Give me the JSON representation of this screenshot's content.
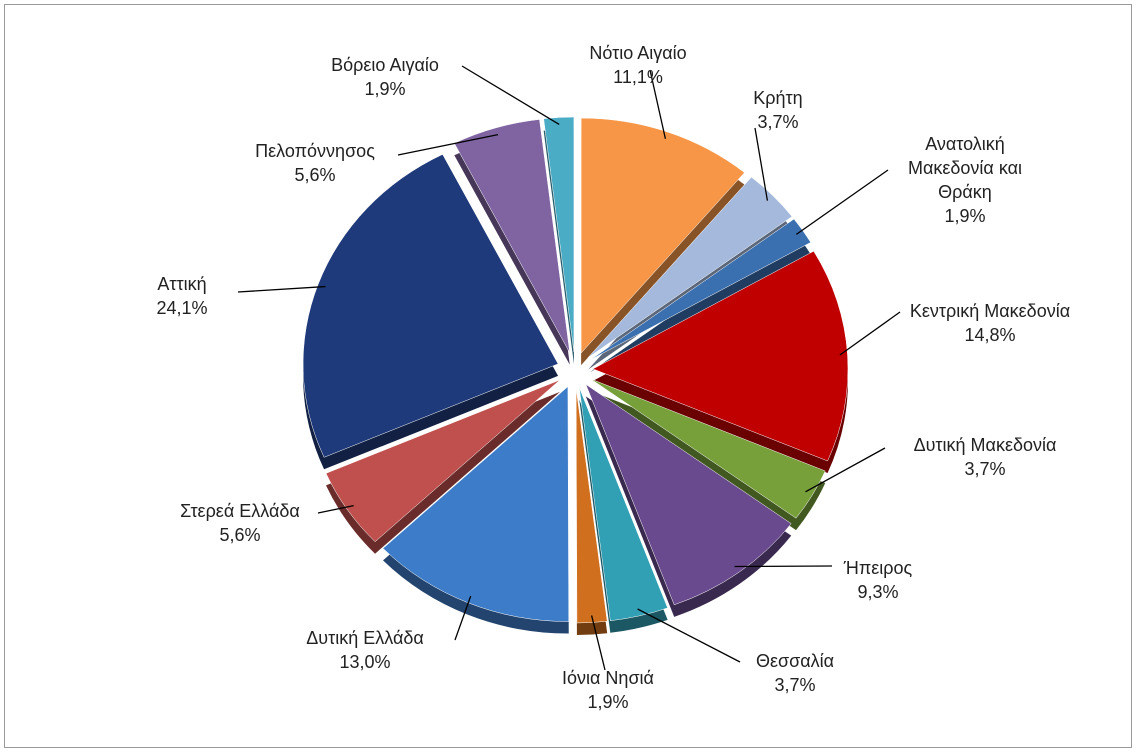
{
  "chart_data": {
    "type": "pie",
    "categories": [
      "Νότιο Αιγαίο",
      "Κρήτη",
      "Ανατολική Μακεδονία και Θράκη",
      "Κεντρική Μακεδονία",
      "Δυτική Μακεδονία",
      "Ήπειρος",
      "Θεσσαλία",
      "Ιόνια Νησιά",
      "Δυτική Ελλάδα",
      "Στερεά Ελλάδα",
      "Αττική",
      "Πελοπόννησος",
      "Βόρειο Αιγαίο"
    ],
    "values": [
      11.1,
      3.7,
      1.9,
      14.8,
      3.7,
      9.3,
      3.7,
      1.9,
      13.0,
      5.6,
      24.1,
      5.6,
      1.9
    ],
    "value_labels": [
      "11,1%",
      "3,7%",
      "1,9%",
      "14,8%",
      "3,7%",
      "9,3%",
      "3,7%",
      "1,9%",
      "13,0%",
      "5,6%",
      "24,1%",
      "5,6%",
      "1,9%"
    ],
    "colors": [
      "#f79646",
      "#a5b9dc",
      "#3a6fb0",
      "#c00000",
      "#77a03a",
      "#6a4a8e",
      "#31a0b5",
      "#d0701f",
      "#3d7cc9",
      "#c0504d",
      "#1f3a7a",
      "#8064a2",
      "#4bacc6"
    ]
  }
}
